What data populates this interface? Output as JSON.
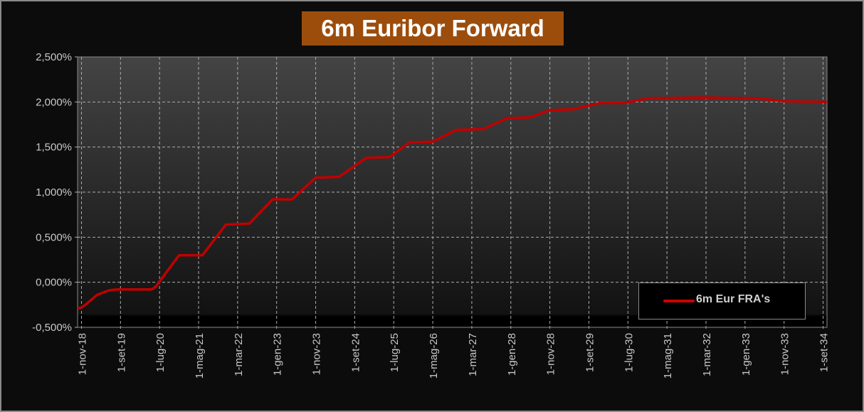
{
  "chart_data": {
    "type": "line",
    "title": "6m Euribor Forward",
    "xlabel": "",
    "ylabel": "",
    "ylim": [
      -0.5,
      2.5
    ],
    "y_ticks": [
      "-0,500%",
      "0,000%",
      "0,500%",
      "1,000%",
      "1,500%",
      "2,000%",
      "2,500%"
    ],
    "y_tick_values": [
      -0.5,
      0,
      0.5,
      1,
      1.5,
      2,
      2.5
    ],
    "x_range": [
      "2018-10",
      "2034-10"
    ],
    "x_ticks": [
      "1-nov-18",
      "1-set-19",
      "1-lug-20",
      "1-mag-21",
      "1-mar-22",
      "1-gen-23",
      "1-nov-23",
      "1-set-24",
      "1-lug-25",
      "1-mag-26",
      "1-mar-27",
      "1-gen-28",
      "1-nov-28",
      "1-set-29",
      "1-lug-30",
      "1-mag-31",
      "1-mar-32",
      "1-gen-33",
      "1-nov-33",
      "1-set-34"
    ],
    "x_tick_dates": [
      "2018-11",
      "2019-09",
      "2020-07",
      "2021-05",
      "2022-03",
      "2023-01",
      "2023-11",
      "2024-09",
      "2025-07",
      "2026-05",
      "2027-03",
      "2028-01",
      "2028-11",
      "2029-09",
      "2030-07",
      "2031-05",
      "2032-03",
      "2033-01",
      "2033-11",
      "2034-09"
    ],
    "grid": true,
    "legend_position": "bottom-right",
    "series": [
      {
        "name": "6m Eur FRA's",
        "color": "#c00000",
        "x": [
          "2018-10",
          "2018-11",
          "2018-12",
          "2019-03",
          "2019-06",
          "2019-08",
          "2020-05",
          "2020-06",
          "2020-12",
          "2021-06",
          "2021-12",
          "2022-06",
          "2022-12",
          "2023-05",
          "2023-11",
          "2024-05",
          "2024-12",
          "2025-06",
          "2025-11",
          "2026-05",
          "2026-11",
          "2027-06",
          "2027-12",
          "2028-06",
          "2028-11",
          "2029-05",
          "2029-12",
          "2030-06",
          "2030-12",
          "2032-02",
          "2033-04",
          "2033-11",
          "2034-10"
        ],
        "y": [
          -0.29,
          -0.28,
          -0.25,
          -0.14,
          -0.09,
          -0.08,
          -0.08,
          -0.05,
          0.3,
          0.3,
          0.64,
          0.65,
          0.92,
          0.92,
          1.16,
          1.17,
          1.38,
          1.39,
          1.55,
          1.56,
          1.69,
          1.7,
          1.82,
          1.83,
          1.91,
          1.92,
          1.99,
          1.99,
          2.04,
          2.05,
          2.04,
          2.01,
          2.0
        ]
      }
    ]
  }
}
